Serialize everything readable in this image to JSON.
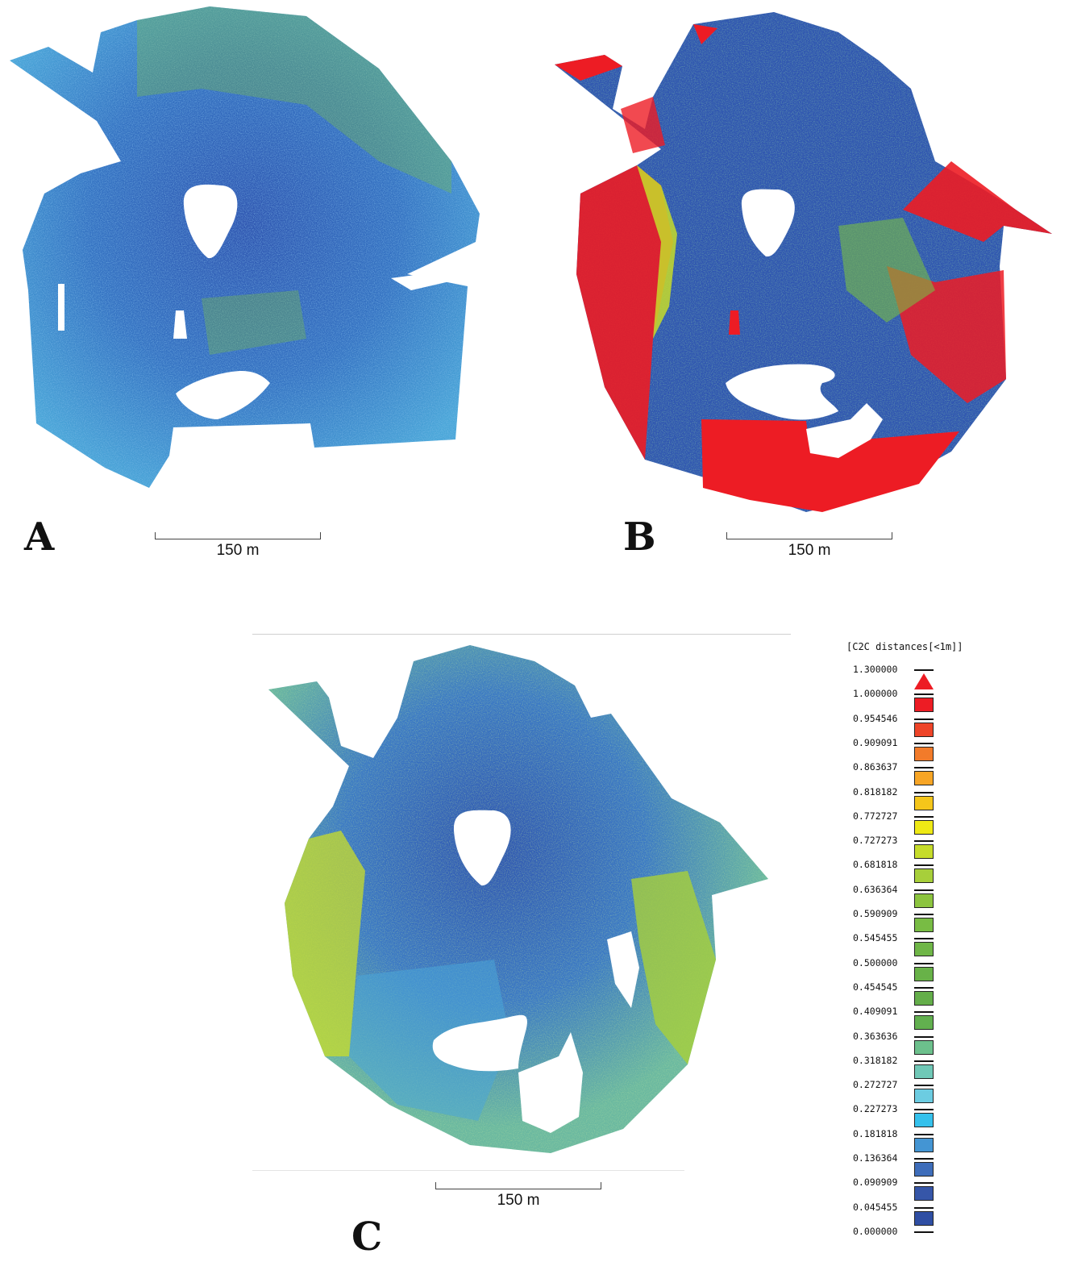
{
  "panels": [
    {
      "letter": "A",
      "scale_label": "150 m"
    },
    {
      "letter": "B",
      "scale_label": "150 m"
    },
    {
      "letter": "C",
      "scale_label": "150 m"
    }
  ],
  "legend": {
    "title": "[C2C distances[<1m]]",
    "ticks": [
      "1.300000",
      "1.000000",
      "0.954546",
      "0.909091",
      "0.863637",
      "0.818182",
      "0.772727",
      "0.727273",
      "0.681818",
      "0.636364",
      "0.590909",
      "0.545455",
      "0.500000",
      "0.454545",
      "0.409091",
      "0.363636",
      "0.318182",
      "0.272727",
      "0.227273",
      "0.181818",
      "0.136364",
      "0.090909",
      "0.045455",
      "0.000000"
    ],
    "swatch_colors": [
      "#ed1c24",
      "#ee4428",
      "#f27b2a",
      "#f7a525",
      "#f5c61a",
      "#eee915",
      "#c6dc2a",
      "#a7cf3a",
      "#8cc43f",
      "#78bc44",
      "#6fb647",
      "#68b248",
      "#64ae4a",
      "#62b04f",
      "#6cc08c",
      "#70c8b7",
      "#6ccce1",
      "#35c1ec",
      "#4495d3",
      "#3e6dba",
      "#3656a8",
      "#2f4ea3"
    ],
    "arrow_color": "#ed1c24"
  },
  "palette": {
    "deep_blue": "#2f55b0",
    "mid_blue": "#3a7cc8",
    "cyan": "#45b0e0",
    "green": "#7cc142",
    "yellow_green": "#c9dd2a",
    "red": "#ed1c24"
  }
}
